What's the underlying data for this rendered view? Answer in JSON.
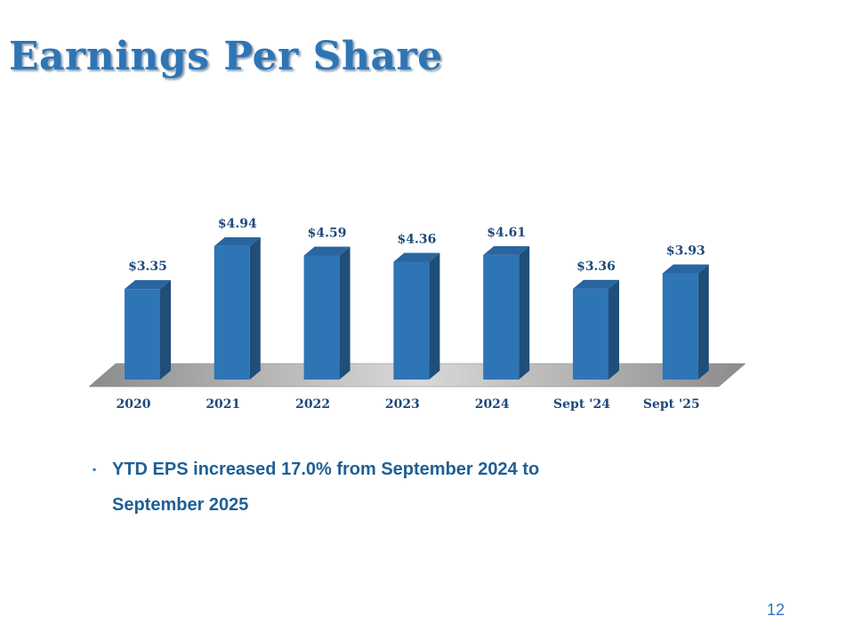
{
  "slide": {
    "title": "Earnings Per Share",
    "bullet_mark": "▪",
    "bullet_text": "YTD EPS increased 17.0%  from September 2024 to\nSeptember 2025",
    "page_number": "12",
    "colors": {
      "title": "#2E75B6",
      "bar_front": "#2E75B6",
      "bar_side": "#1F4E79",
      "bar_top": "#2A65A0",
      "label": "#1F497D",
      "floor": "#A6A6A6"
    }
  },
  "chart_data": {
    "type": "bar",
    "categories": [
      "2020",
      "2021",
      "2022",
      "2023",
      "2024",
      "Sept '24",
      "Sept '25"
    ],
    "values": [
      3.35,
      4.94,
      4.59,
      4.36,
      4.61,
      3.36,
      3.93
    ],
    "data_labels": [
      "$3.35",
      "$4.94",
      "$4.59",
      "$4.36",
      "$4.61",
      "$3.36",
      "$3.93"
    ],
    "title": "",
    "xlabel": "",
    "ylabel": "",
    "ylim": [
      0,
      5
    ],
    "grid": false,
    "legend": "none",
    "style": "3d"
  }
}
